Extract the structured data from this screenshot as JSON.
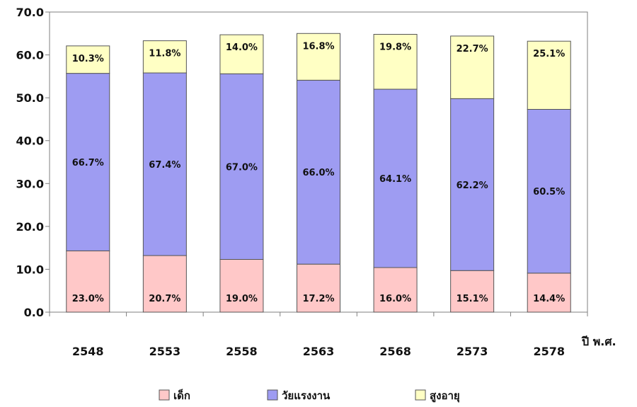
{
  "chart_data": {
    "type": "bar",
    "stacked": true,
    "categories": [
      "2548",
      "2553",
      "2558",
      "2563",
      "2568",
      "2573",
      "2578"
    ],
    "series": [
      {
        "name": "เด็ก",
        "color": "#ffc8c8",
        "values": [
          14.3,
          13.2,
          12.3,
          11.2,
          10.4,
          9.7,
          9.1
        ],
        "labels": [
          "23.0%",
          "20.7%",
          "19.0%",
          "17.2%",
          "16.0%",
          "15.1%",
          "14.4%"
        ]
      },
      {
        "name": "วัยแรงงาน",
        "color": "#9e9cf2",
        "values": [
          41.4,
          42.6,
          43.3,
          42.9,
          41.6,
          40.1,
          38.2
        ],
        "labels": [
          "66.7%",
          "67.4%",
          "67.0%",
          "66.0%",
          "64.1%",
          "62.2%",
          "60.5%"
        ]
      },
      {
        "name": "สูงอายุ",
        "color": "#ffffc4",
        "values": [
          6.4,
          7.5,
          9.1,
          10.9,
          12.8,
          14.6,
          15.9
        ],
        "labels": [
          "10.3%",
          "11.8%",
          "14.0%",
          "16.8%",
          "19.8%",
          "22.7%",
          "25.1%"
        ]
      }
    ],
    "yticks": [
      "0.0",
      "10.0",
      "20.0",
      "30.0",
      "40.0",
      "50.0",
      "60.0",
      "70.0"
    ],
    "ylim": [
      0,
      70
    ],
    "xlabel": "ปี พ.ศ.",
    "ylabel": "",
    "title": "",
    "grid": false,
    "legend": "bottom"
  }
}
